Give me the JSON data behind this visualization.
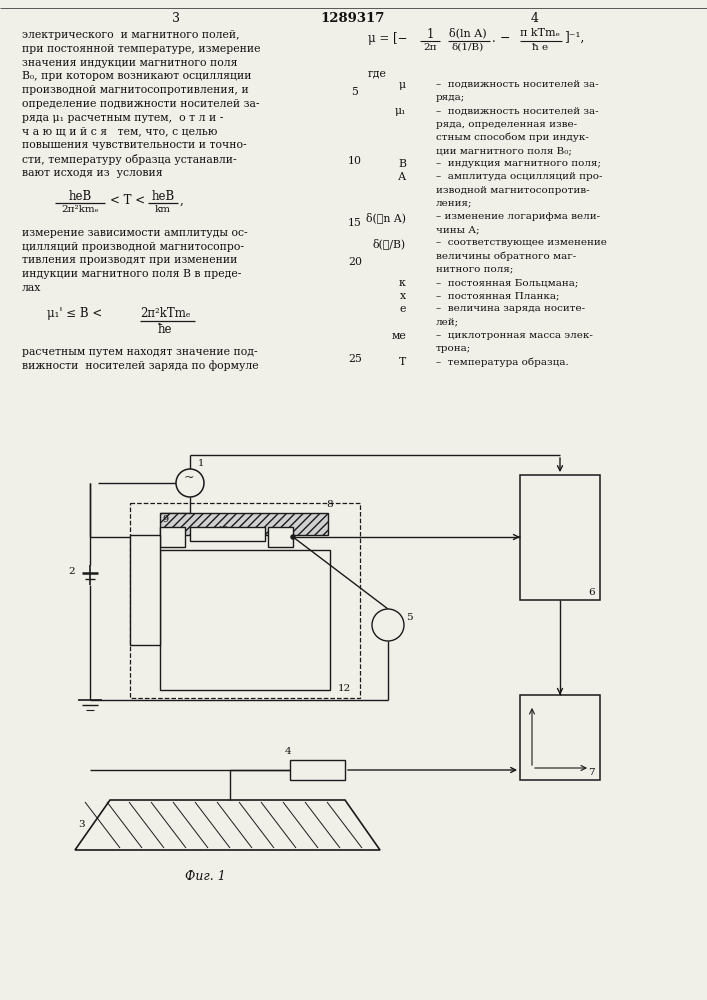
{
  "bg_color": "#f0efe8",
  "lc": "#1a1a1a",
  "header_num": "1289317",
  "page_left": "3",
  "page_right": "4",
  "text_left": [
    "электрического  и магнитного полей,",
    "при постоянной температуре, измерение",
    "значения индукции магнитного поля",
    "В₀, при котором возникают осцилляции",
    "производной магнитосопротивления, и",
    "определение подвижности носителей за-",
    "ряда μ₁ расчетным путем,  о т л и -",
    "ч а ю щ и й с я   тем, что, с целью",
    "повышения чувствительности и точно-",
    "сти, температуру образца устанавли-",
    "вают исходя из  условия"
  ],
  "text_left2": [
    "измерение зависимости амплитуды ос-",
    "цилляций производной магнитосопро-",
    "тивления производят при изменении",
    "индукции магнитного поля В в преде-",
    "лах"
  ],
  "text_left3": [
    "расчетным путем находят значение под-",
    "вижности  носителей заряда по формуле"
  ],
  "right_defs": [
    [
      "μ",
      "–  подвижность носителей за-",
      "ряда;"
    ],
    [
      "μ₁",
      "–  подвижность носителей за-",
      "ряда, определенная изве-"
    ],
    [
      "",
      "стным способом при индук-",
      ""
    ],
    [
      "",
      "ции магнитного поля В₀;",
      ""
    ],
    [
      "В",
      "–  индукция магнитного поля;",
      ""
    ],
    [
      "А",
      "–  амплитуда осцилляций про-",
      "изводной магнитосопротив-"
    ],
    [
      "",
      "ления;",
      ""
    ],
    [
      "δ(ℓn A)",
      "– изменение логарифма вели-",
      "чины А;"
    ],
    [
      "δ(ℓ/В)",
      "–  соответствующее изменение",
      "величины обратного маг-"
    ],
    [
      "",
      "нитного поля;",
      ""
    ],
    [
      "к",
      "–  постоянная Больцмана;",
      ""
    ],
    [
      "х",
      "–  постоянная Планка;",
      ""
    ],
    [
      "е",
      "–  величина заряда носите-",
      "лей;"
    ],
    [
      "ме",
      "–  циклотронная масса элек-",
      "трона;"
    ],
    [
      "Т",
      "–  температура образца.",
      ""
    ]
  ],
  "fig_caption": "Фиг. 1"
}
